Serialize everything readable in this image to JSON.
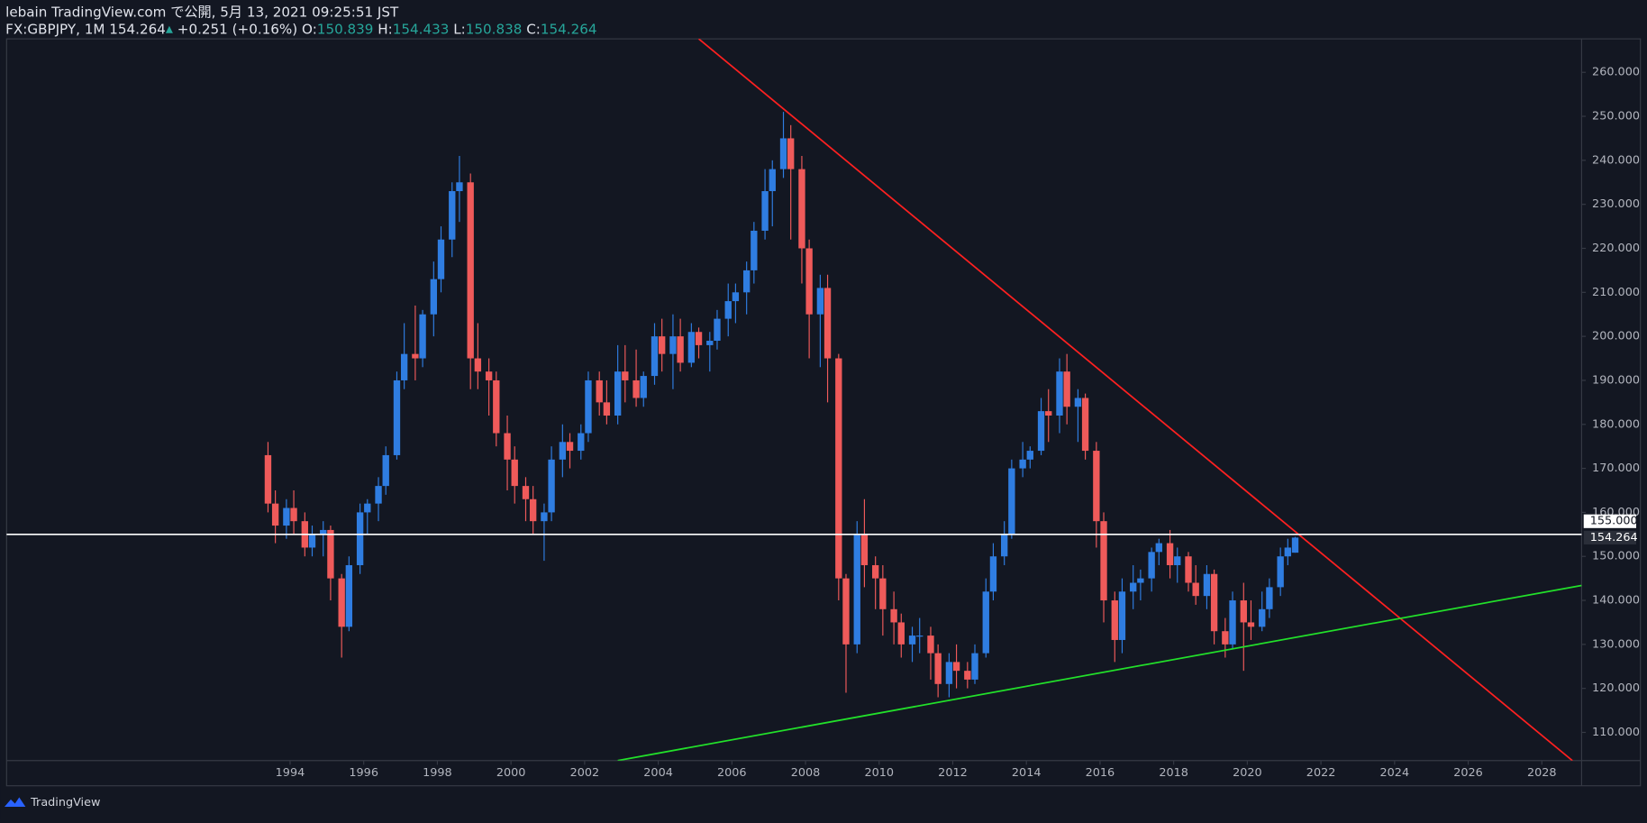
{
  "header": {
    "line1": "lebain TradingView.com で公開, 5月 13, 2021 09:25:51 JST",
    "symbol": "FX:GBPJPY, 1M",
    "price": 154.264,
    "arrow": "▲",
    "change": "+0.251 (+0.16%)",
    "ohlc": [
      {
        "label": "O:",
        "value": 150.839
      },
      {
        "label": "H:",
        "value": 154.433
      },
      {
        "label": "L:",
        "value": 150.838
      },
      {
        "label": "C:",
        "value": 154.264
      }
    ]
  },
  "footer": {
    "brand": "TradingView"
  },
  "chart_data": {
    "type": "candlestick",
    "xlim": [
      1986.3,
      2029.08
    ],
    "ylim": [
      103.6,
      267.6
    ],
    "xticks": [
      1994,
      1996,
      1998,
      2000,
      2002,
      2004,
      2006,
      2008,
      2010,
      2012,
      2014,
      2016,
      2018,
      2020,
      2022,
      2024,
      2026,
      2028
    ],
    "yticks": [
      {
        "value": 110,
        "label": "110.000"
      },
      {
        "value": 120,
        "label": "120.000"
      },
      {
        "value": 130,
        "label": "130.000"
      },
      {
        "value": 140,
        "label": "140.000"
      },
      {
        "value": 150,
        "label": "150.000"
      },
      {
        "value": 160,
        "label": "160.000"
      },
      {
        "value": 170,
        "label": "170.000"
      },
      {
        "value": 180,
        "label": "180.000"
      },
      {
        "value": 190,
        "label": "190.000"
      },
      {
        "value": 200,
        "label": "200.000"
      },
      {
        "value": 210,
        "label": "210.000"
      },
      {
        "value": 220,
        "label": "220.000"
      },
      {
        "value": 230,
        "label": "230.000"
      },
      {
        "value": 240,
        "label": "240.000"
      },
      {
        "value": 250,
        "label": "250.000"
      },
      {
        "value": 260,
        "label": "260.000"
      }
    ],
    "up_color": "#2f7de1",
    "down_color": "#ef5a5a",
    "x": [
      1993.4,
      1993.6,
      1993.9,
      1994.1,
      1994.4,
      1994.6,
      1994.9,
      1995.1,
      1995.4,
      1995.6,
      1995.9,
      1996.1,
      1996.4,
      1996.6,
      1996.9,
      1997.1,
      1997.4,
      1997.6,
      1997.9,
      1998.1,
      1998.4,
      1998.6,
      1998.9,
      1999.1,
      1999.4,
      1999.6,
      1999.9,
      2000.1,
      2000.4,
      2000.6,
      2000.9,
      2001.1,
      2001.4,
      2001.6,
      2001.9,
      2002.1,
      2002.4,
      2002.6,
      2002.9,
      2003.1,
      2003.4,
      2003.6,
      2003.9,
      2004.1,
      2004.4,
      2004.6,
      2004.9,
      2005.1,
      2005.4,
      2005.6,
      2005.9,
      2006.1,
      2006.4,
      2006.6,
      2006.9,
      2007.1,
      2007.4,
      2007.6,
      2007.9,
      2008.1,
      2008.4,
      2008.6,
      2008.9,
      2009.1,
      2009.4,
      2009.6,
      2009.9,
      2010.1,
      2010.4,
      2010.6,
      2010.9,
      2011.1,
      2011.4,
      2011.6,
      2011.9,
      2012.1,
      2012.4,
      2012.6,
      2012.9,
      2013.1,
      2013.4,
      2013.6,
      2013.9,
      2014.1,
      2014.4,
      2014.6,
      2014.9,
      2015.1,
      2015.4,
      2015.6,
      2015.9,
      2016.1,
      2016.4,
      2016.6,
      2016.9,
      2017.1,
      2017.4,
      2017.6,
      2017.9,
      2018.1,
      2018.4,
      2018.6,
      2018.9,
      2019.1,
      2019.4,
      2019.6,
      2019.9,
      2020.1,
      2020.4,
      2020.6,
      2020.9,
      2021.1,
      2021.3
    ],
    "ohlc": [
      [
        173,
        176,
        160,
        162
      ],
      [
        162,
        165,
        153,
        157
      ],
      [
        157,
        163,
        154,
        161
      ],
      [
        161,
        165,
        155,
        158
      ],
      [
        158,
        160,
        150,
        152
      ],
      [
        152,
        157,
        150,
        155
      ],
      [
        155,
        158,
        150,
        156
      ],
      [
        156,
        157,
        140,
        145
      ],
      [
        145,
        146,
        127,
        134
      ],
      [
        134,
        150,
        133,
        148
      ],
      [
        148,
        162,
        146,
        160
      ],
      [
        160,
        163,
        155,
        162
      ],
      [
        162,
        168,
        158,
        166
      ],
      [
        166,
        175,
        164,
        173
      ],
      [
        173,
        192,
        172,
        190
      ],
      [
        190,
        203,
        188,
        196
      ],
      [
        196,
        207,
        190,
        195
      ],
      [
        195,
        206,
        193,
        205
      ],
      [
        205,
        217,
        200,
        213
      ],
      [
        213,
        225,
        210,
        222
      ],
      [
        222,
        235,
        218,
        233
      ],
      [
        233,
        241,
        226,
        235
      ],
      [
        235,
        237,
        188,
        195
      ],
      [
        195,
        203,
        188,
        192
      ],
      [
        192,
        195,
        182,
        190
      ],
      [
        190,
        192,
        175,
        178
      ],
      [
        178,
        182,
        165,
        172
      ],
      [
        172,
        175,
        162,
        166
      ],
      [
        166,
        168,
        158,
        163
      ],
      [
        163,
        166,
        155,
        158
      ],
      [
        158,
        162,
        149,
        160
      ],
      [
        160,
        175,
        158,
        172
      ],
      [
        172,
        180,
        168,
        176
      ],
      [
        176,
        178,
        170,
        174
      ],
      [
        174,
        180,
        172,
        178
      ],
      [
        178,
        192,
        176,
        190
      ],
      [
        190,
        192,
        182,
        185
      ],
      [
        185,
        190,
        180,
        182
      ],
      [
        182,
        198,
        180,
        192
      ],
      [
        192,
        198,
        185,
        190
      ],
      [
        190,
        197,
        184,
        186
      ],
      [
        186,
        192,
        184,
        191
      ],
      [
        191,
        203,
        189,
        200
      ],
      [
        200,
        204,
        192,
        196
      ],
      [
        196,
        205,
        188,
        200
      ],
      [
        200,
        204,
        192,
        194
      ],
      [
        194,
        203,
        193,
        201
      ],
      [
        201,
        202,
        195,
        198
      ],
      [
        198,
        201,
        192,
        199
      ],
      [
        199,
        206,
        197,
        204
      ],
      [
        204,
        212,
        200,
        208
      ],
      [
        208,
        212,
        203,
        210
      ],
      [
        210,
        217,
        205,
        215
      ],
      [
        215,
        226,
        212,
        224
      ],
      [
        224,
        238,
        222,
        233
      ],
      [
        233,
        240,
        225,
        238
      ],
      [
        238,
        251,
        236,
        245
      ],
      [
        245,
        248,
        222,
        238
      ],
      [
        238,
        241,
        212,
        220
      ],
      [
        220,
        222,
        195,
        205
      ],
      [
        205,
        214,
        193,
        211
      ],
      [
        211,
        214,
        185,
        195
      ],
      [
        195,
        196,
        140,
        145
      ],
      [
        145,
        146,
        119,
        130
      ],
      [
        130,
        158,
        128,
        155
      ],
      [
        155,
        163,
        143,
        148
      ],
      [
        148,
        150,
        138,
        145
      ],
      [
        145,
        148,
        132,
        138
      ],
      [
        138,
        142,
        130,
        135
      ],
      [
        135,
        137,
        127,
        130
      ],
      [
        130,
        134,
        126,
        132
      ],
      [
        132,
        136,
        128,
        132
      ],
      [
        132,
        134,
        122,
        128
      ],
      [
        128,
        130,
        118,
        121
      ],
      [
        121,
        128,
        118,
        126
      ],
      [
        126,
        130,
        120,
        124
      ],
      [
        124,
        126,
        120,
        122
      ],
      [
        122,
        130,
        121,
        128
      ],
      [
        128,
        145,
        127,
        142
      ],
      [
        142,
        153,
        140,
        150
      ],
      [
        150,
        158,
        148,
        155
      ],
      [
        155,
        172,
        154,
        170
      ],
      [
        170,
        176,
        168,
        172
      ],
      [
        172,
        175,
        170,
        174
      ],
      [
        174,
        186,
        173,
        183
      ],
      [
        183,
        188,
        176,
        182
      ],
      [
        182,
        195,
        178,
        192
      ],
      [
        192,
        196,
        180,
        184
      ],
      [
        184,
        188,
        176,
        186
      ],
      [
        186,
        187,
        172,
        174
      ],
      [
        174,
        176,
        152,
        158
      ],
      [
        158,
        160,
        135,
        140
      ],
      [
        140,
        142,
        126,
        131
      ],
      [
        131,
        145,
        128,
        142
      ],
      [
        142,
        148,
        138,
        144
      ],
      [
        144,
        147,
        140,
        145
      ],
      [
        145,
        152,
        142,
        151
      ],
      [
        151,
        154,
        148,
        153
      ],
      [
        153,
        156,
        145,
        148
      ],
      [
        148,
        152,
        144,
        150
      ],
      [
        150,
        151,
        142,
        144
      ],
      [
        144,
        148,
        139,
        141
      ],
      [
        141,
        148,
        138,
        146
      ],
      [
        146,
        147,
        130,
        133
      ],
      [
        133,
        136,
        127,
        130
      ],
      [
        130,
        142,
        129,
        140
      ],
      [
        140,
        144,
        124,
        135
      ],
      [
        135,
        140,
        131,
        134
      ],
      [
        134,
        142,
        133,
        138
      ],
      [
        138,
        145,
        136,
        143
      ],
      [
        143,
        152,
        141,
        150
      ],
      [
        150,
        154,
        148,
        152
      ],
      [
        150.839,
        154.433,
        150.838,
        154.264
      ]
    ],
    "hline": {
      "value": 155,
      "label": "155.000",
      "color": "#ffffff"
    },
    "last_price": 154.264,
    "lines": [
      {
        "color": "#ff2020",
        "points": [
          [
            2005.1,
            267.6
          ],
          [
            2028.83,
            103.6
          ]
        ]
      },
      {
        "color": "#22e02a",
        "points": [
          [
            2002.9,
            103.6
          ],
          [
            2029.08,
            143.4
          ]
        ]
      }
    ]
  }
}
